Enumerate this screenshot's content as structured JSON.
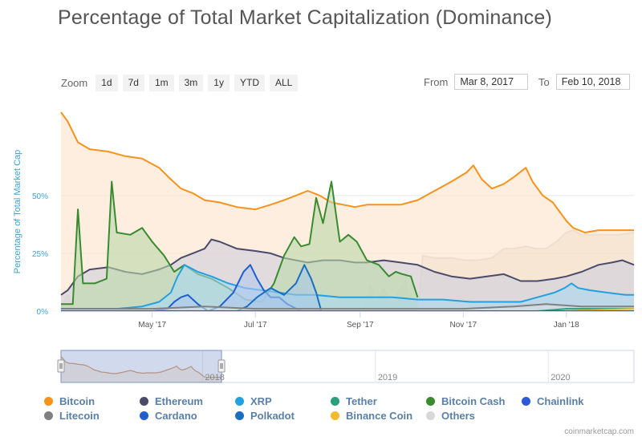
{
  "title": "Percentage of Total Market Capitalization (Dominance)",
  "zoom": {
    "label": "Zoom",
    "buttons": [
      "1d",
      "7d",
      "1m",
      "3m",
      "1y",
      "YTD",
      "ALL"
    ]
  },
  "range": {
    "from_label": "From",
    "from_value": "Mar 8, 2017",
    "to_label": "To",
    "to_value": "Feb 10, 2018"
  },
  "credit": "coinmarketcap.com",
  "navigator": {
    "labels": [
      "2018",
      "2019",
      "2020"
    ]
  },
  "chart_data": {
    "type": "area",
    "title": "Percentage of Total Market Capitalization (Dominance)",
    "ylabel": "Percentage of Total Market Cap",
    "ylim": [
      0,
      86
    ],
    "yticks": [
      0,
      25,
      50
    ],
    "ytick_labels": [
      "0%",
      "25%",
      "50%"
    ],
    "xlim": [
      "2017-03-08",
      "2018-02-10"
    ],
    "xticks": [
      "2017-05-01",
      "2017-07-01",
      "2017-09-01",
      "2017-11-01",
      "2018-01-01"
    ],
    "xtick_labels": [
      "May '17",
      "Jul '17",
      "Sep '17",
      "Nov '17",
      "Jan '18"
    ],
    "legend": "bottom",
    "grid": true,
    "series": [
      {
        "name": "Bitcoin",
        "color": "#f7931a",
        "fill": "#fde3c9",
        "points": [
          [
            "2017-03-08",
            86
          ],
          [
            "2017-03-12",
            82
          ],
          [
            "2017-03-18",
            73
          ],
          [
            "2017-03-25",
            70
          ],
          [
            "2017-04-05",
            69
          ],
          [
            "2017-04-15",
            67
          ],
          [
            "2017-04-25",
            66
          ],
          [
            "2017-05-05",
            62
          ],
          [
            "2017-05-12",
            57
          ],
          [
            "2017-05-18",
            53
          ],
          [
            "2017-05-25",
            51
          ],
          [
            "2017-06-01",
            48
          ],
          [
            "2017-06-10",
            47
          ],
          [
            "2017-06-20",
            45
          ],
          [
            "2017-07-01",
            44
          ],
          [
            "2017-07-10",
            46
          ],
          [
            "2017-07-18",
            48
          ],
          [
            "2017-07-25",
            50
          ],
          [
            "2017-08-01",
            52
          ],
          [
            "2017-08-08",
            50
          ],
          [
            "2017-08-15",
            47
          ],
          [
            "2017-08-22",
            46
          ],
          [
            "2017-08-29",
            45
          ],
          [
            "2017-09-05",
            46
          ],
          [
            "2017-09-15",
            46
          ],
          [
            "2017-09-25",
            46
          ],
          [
            "2017-10-05",
            48
          ],
          [
            "2017-10-15",
            52
          ],
          [
            "2017-10-25",
            56
          ],
          [
            "2017-11-03",
            60
          ],
          [
            "2017-11-07",
            63
          ],
          [
            "2017-11-12",
            57
          ],
          [
            "2017-11-18",
            53
          ],
          [
            "2017-11-25",
            55
          ],
          [
            "2017-12-01",
            58
          ],
          [
            "2017-12-08",
            62
          ],
          [
            "2017-12-12",
            56
          ],
          [
            "2017-12-18",
            50
          ],
          [
            "2017-12-24",
            47
          ],
          [
            "2017-12-28",
            43
          ],
          [
            "2018-01-01",
            39
          ],
          [
            "2018-01-05",
            36
          ],
          [
            "2018-01-12",
            34
          ],
          [
            "2018-01-20",
            35
          ],
          [
            "2018-02-01",
            35
          ],
          [
            "2018-02-10",
            35
          ]
        ]
      },
      {
        "name": "Ethereum",
        "color": "#4a4a6a",
        "fill": "#cfcfdd",
        "points": [
          [
            "2017-03-08",
            7
          ],
          [
            "2017-03-12",
            9
          ],
          [
            "2017-03-18",
            15
          ],
          [
            "2017-03-25",
            18
          ],
          [
            "2017-04-05",
            19
          ],
          [
            "2017-04-15",
            17
          ],
          [
            "2017-04-25",
            16
          ],
          [
            "2017-05-05",
            18
          ],
          [
            "2017-05-12",
            20
          ],
          [
            "2017-05-18",
            23
          ],
          [
            "2017-05-25",
            25
          ],
          [
            "2017-06-01",
            27
          ],
          [
            "2017-06-05",
            31
          ],
          [
            "2017-06-10",
            30
          ],
          [
            "2017-06-20",
            27
          ],
          [
            "2017-07-01",
            26
          ],
          [
            "2017-07-10",
            25
          ],
          [
            "2017-07-18",
            23
          ],
          [
            "2017-07-25",
            22
          ],
          [
            "2017-08-01",
            21
          ],
          [
            "2017-08-10",
            22
          ],
          [
            "2017-08-20",
            22
          ],
          [
            "2017-08-29",
            21
          ],
          [
            "2017-09-05",
            21
          ],
          [
            "2017-09-15",
            22
          ],
          [
            "2017-09-25",
            21
          ],
          [
            "2017-10-05",
            20
          ],
          [
            "2017-10-15",
            17
          ],
          [
            "2017-10-25",
            15
          ],
          [
            "2017-11-05",
            14
          ],
          [
            "2017-11-15",
            15
          ],
          [
            "2017-11-25",
            16
          ],
          [
            "2017-12-05",
            13
          ],
          [
            "2017-12-15",
            13
          ],
          [
            "2017-12-25",
            14
          ],
          [
            "2018-01-01",
            15
          ],
          [
            "2018-01-10",
            17
          ],
          [
            "2018-01-20",
            20
          ],
          [
            "2018-01-28",
            21
          ],
          [
            "2018-02-03",
            22
          ],
          [
            "2018-02-10",
            20
          ]
        ]
      },
      {
        "name": "XRP",
        "color": "#23a0e0",
        "fill": "#a9d9f2",
        "points": [
          [
            "2017-03-08",
            1
          ],
          [
            "2017-03-25",
            1
          ],
          [
            "2017-04-10",
            1
          ],
          [
            "2017-04-25",
            2
          ],
          [
            "2017-05-05",
            4
          ],
          [
            "2017-05-12",
            8
          ],
          [
            "2017-05-16",
            15
          ],
          [
            "2017-05-20",
            20
          ],
          [
            "2017-05-28",
            17
          ],
          [
            "2017-06-05",
            15
          ],
          [
            "2017-06-15",
            12
          ],
          [
            "2017-06-25",
            10
          ],
          [
            "2017-07-05",
            9
          ],
          [
            "2017-07-15",
            8
          ],
          [
            "2017-07-25",
            7
          ],
          [
            "2017-08-05",
            7
          ],
          [
            "2017-08-20",
            6
          ],
          [
            "2017-09-05",
            6
          ],
          [
            "2017-09-20",
            6
          ],
          [
            "2017-10-05",
            5
          ],
          [
            "2017-10-20",
            5
          ],
          [
            "2017-11-05",
            4
          ],
          [
            "2017-11-20",
            4
          ],
          [
            "2017-12-05",
            4
          ],
          [
            "2017-12-15",
            6
          ],
          [
            "2017-12-25",
            8
          ],
          [
            "2017-12-31",
            10
          ],
          [
            "2018-01-04",
            12
          ],
          [
            "2018-01-08",
            10
          ],
          [
            "2018-01-15",
            9
          ],
          [
            "2018-01-25",
            8
          ],
          [
            "2018-02-05",
            7
          ],
          [
            "2018-02-10",
            7
          ]
        ]
      },
      {
        "name": "Tether",
        "color": "#26a17b",
        "fill": "#b8e2d4",
        "points": [
          [
            "2017-03-08",
            0
          ],
          [
            "2017-06-01",
            0
          ],
          [
            "2017-09-01",
            0
          ],
          [
            "2017-11-01",
            0
          ],
          [
            "2017-12-15",
            0
          ],
          [
            "2018-01-01",
            1
          ],
          [
            "2018-02-10",
            1
          ]
        ]
      },
      {
        "name": "Bitcoin Cash",
        "color": "#3a8a30",
        "fill": "#b9d9a9",
        "points": [
          [
            "2017-03-08",
            3
          ],
          [
            "2017-03-15",
            3
          ],
          [
            "2017-03-18",
            44
          ],
          [
            "2017-03-21",
            12
          ],
          [
            "2017-03-28",
            12
          ],
          [
            "2017-04-04",
            14
          ],
          [
            "2017-04-07",
            56
          ],
          [
            "2017-04-10",
            34
          ],
          [
            "2017-04-18",
            33
          ],
          [
            "2017-04-25",
            36
          ],
          [
            "2017-05-01",
            30
          ],
          [
            "2017-05-08",
            24
          ],
          [
            "2017-05-14",
            17
          ],
          [
            "2017-05-20",
            20
          ],
          [
            "2017-05-28",
            16
          ],
          [
            "2017-06-05",
            14
          ],
          [
            "2017-06-15",
            10
          ],
          [
            "2017-06-25",
            5
          ],
          [
            "2017-07-05",
            4
          ],
          [
            "2017-07-12",
            12
          ],
          [
            "2017-07-18",
            24
          ],
          [
            "2017-07-24",
            32
          ],
          [
            "2017-07-28",
            28
          ],
          [
            "2017-08-02",
            29
          ],
          [
            "2017-08-06",
            49
          ],
          [
            "2017-08-10",
            38
          ],
          [
            "2017-08-15",
            56
          ],
          [
            "2017-08-20",
            30
          ],
          [
            "2017-08-25",
            33
          ],
          [
            "2017-08-30",
            30
          ],
          [
            "2017-09-05",
            22
          ],
          [
            "2017-09-12",
            20
          ],
          [
            "2017-09-18",
            15
          ],
          [
            "2017-09-22",
            17
          ],
          [
            "2017-09-26",
            16
          ],
          [
            "2017-10-01",
            15
          ],
          [
            "2017-10-05",
            6
          ]
        ]
      },
      {
        "name": "Chainlink",
        "color": "#2a5ada",
        "fill": "#b4c6f0",
        "points": [
          [
            "2017-03-08",
            0
          ],
          [
            "2017-06-01",
            0
          ],
          [
            "2017-09-01",
            0
          ],
          [
            "2017-12-01",
            0
          ],
          [
            "2018-02-10",
            0
          ]
        ]
      },
      {
        "name": "Litecoin",
        "color": "#808080",
        "fill": "#dddddd",
        "points": [
          [
            "2017-03-08",
            1
          ],
          [
            "2017-04-01",
            1
          ],
          [
            "2017-05-01",
            1
          ],
          [
            "2017-06-01",
            2
          ],
          [
            "2017-07-01",
            1
          ],
          [
            "2017-08-01",
            1
          ],
          [
            "2017-09-01",
            1
          ],
          [
            "2017-10-01",
            1
          ],
          [
            "2017-11-01",
            1
          ],
          [
            "2017-12-01",
            2
          ],
          [
            "2017-12-20",
            3
          ],
          [
            "2018-01-10",
            2
          ],
          [
            "2018-02-10",
            2
          ]
        ]
      },
      {
        "name": "Cardano",
        "color": "#1f5fd0",
        "fill": "#b3c7ef",
        "points": [
          [
            "2017-03-08",
            0
          ],
          [
            "2017-05-01",
            0
          ],
          [
            "2017-05-10",
            1
          ],
          [
            "2017-05-14",
            4
          ],
          [
            "2017-05-18",
            6
          ],
          [
            "2017-05-22",
            7
          ],
          [
            "2017-05-28",
            3
          ],
          [
            "2017-06-03",
            0
          ],
          [
            "2017-06-10",
            2
          ],
          [
            "2017-06-18",
            8
          ],
          [
            "2017-06-24",
            17
          ],
          [
            "2017-06-28",
            20
          ],
          [
            "2017-07-02",
            14
          ],
          [
            "2017-07-06",
            9
          ],
          [
            "2017-07-10",
            6
          ],
          [
            "2017-07-15",
            6
          ],
          [
            "2017-07-20",
            3
          ],
          [
            "2017-07-28",
            0
          ]
        ]
      },
      {
        "name": "Polkadot",
        "color": "#1a6fc0",
        "fill": "#a8c8e8",
        "points": [
          [
            "2017-03-08",
            0
          ],
          [
            "2017-06-20",
            0
          ],
          [
            "2017-06-26",
            2
          ],
          [
            "2017-07-02",
            6
          ],
          [
            "2017-07-10",
            10
          ],
          [
            "2017-07-18",
            7
          ],
          [
            "2017-07-25",
            12
          ],
          [
            "2017-07-30",
            20
          ],
          [
            "2017-08-03",
            14
          ],
          [
            "2017-08-06",
            8
          ],
          [
            "2017-08-09",
            0
          ]
        ]
      },
      {
        "name": "Binance Coin",
        "color": "#f3ba2f",
        "fill": "#fbe5b2",
        "points": [
          [
            "2017-03-08",
            0
          ],
          [
            "2017-08-01",
            0
          ],
          [
            "2017-09-01",
            0
          ],
          [
            "2017-11-01",
            0
          ],
          [
            "2018-01-01",
            0
          ],
          [
            "2018-02-10",
            1
          ]
        ]
      },
      {
        "name": "Others",
        "color": "#d8d8d8",
        "fill": "#e5ddd3",
        "points": [
          [
            "2017-03-08",
            1
          ],
          [
            "2017-03-12",
            7
          ],
          [
            "2017-03-16",
            1
          ],
          [
            "2017-04-15",
            1
          ],
          [
            "2017-06-01",
            1
          ],
          [
            "2017-08-01",
            1
          ],
          [
            "2017-09-03",
            1
          ],
          [
            "2017-09-07",
            11
          ],
          [
            "2017-09-10",
            3
          ],
          [
            "2017-09-15",
            10
          ],
          [
            "2017-09-20",
            2
          ],
          [
            "2017-09-24",
            9
          ],
          [
            "2017-09-28",
            13
          ],
          [
            "2017-10-01",
            3
          ],
          [
            "2017-10-06",
            6
          ],
          [
            "2017-10-08",
            24
          ],
          [
            "2017-10-15",
            23
          ],
          [
            "2017-10-25",
            23
          ],
          [
            "2017-11-02",
            22
          ],
          [
            "2017-11-10",
            22
          ],
          [
            "2017-11-18",
            23
          ],
          [
            "2017-11-25",
            27
          ],
          [
            "2017-12-01",
            27
          ],
          [
            "2017-12-08",
            28
          ],
          [
            "2017-12-14",
            27
          ],
          [
            "2017-12-20",
            27
          ],
          [
            "2017-12-26",
            30
          ],
          [
            "2018-01-01",
            34
          ],
          [
            "2018-01-05",
            35
          ],
          [
            "2018-01-10",
            33
          ],
          [
            "2018-01-15",
            33
          ],
          [
            "2018-01-22",
            33
          ],
          [
            "2018-02-01",
            33
          ],
          [
            "2018-02-10",
            34
          ]
        ]
      }
    ],
    "stack_order": [
      "Others",
      "Bitcoin",
      "Ethereum",
      "Bitcoin Cash",
      "XRP",
      "Cardano",
      "Polkadot",
      "Litecoin",
      "Tether",
      "Binance Coin",
      "Chainlink"
    ],
    "navigator_series": {
      "name": "Bitcoin",
      "range": [
        "2017-03-08",
        "2020-06-30"
      ],
      "selected": [
        "2017-03-08",
        "2018-02-10"
      ]
    }
  }
}
